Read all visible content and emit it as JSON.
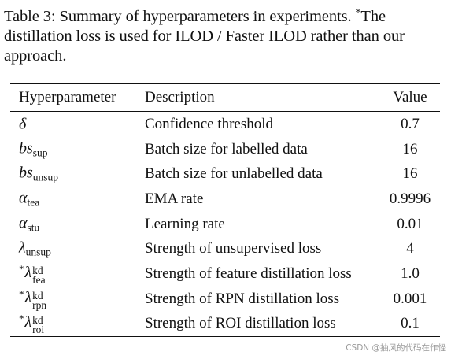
{
  "caption": {
    "lead": "Table 3: Summary of hyperparameters in experiments. ",
    "star": "*",
    "rest": "The distillation loss is used for ILOD / Faster ILOD rather than our approach."
  },
  "table": {
    "headers": {
      "hyperparameter": "Hyperparameter",
      "description": "Description",
      "value": "Value"
    },
    "rows": [
      {
        "star": "",
        "symbol": "δ",
        "sub": "",
        "sup": "",
        "description": "Confidence threshold",
        "value": "0.7"
      },
      {
        "star": "",
        "symbol": "bs",
        "sub": "sup",
        "sup": "",
        "description": "Batch size for labelled data",
        "value": "16"
      },
      {
        "star": "",
        "symbol": "bs",
        "sub": "unsup",
        "sup": "",
        "description": "Batch size for unlabelled data",
        "value": "16"
      },
      {
        "star": "",
        "symbol": "α",
        "sub": "tea",
        "sup": "",
        "description": "EMA rate",
        "value": "0.9996"
      },
      {
        "star": "",
        "symbol": "α",
        "sub": "stu",
        "sup": "",
        "description": "Learning rate",
        "value": "0.01"
      },
      {
        "star": "",
        "symbol": "λ",
        "sub": "unsup",
        "sup": "",
        "description": "Strength of unsupervised loss",
        "value": "4"
      },
      {
        "star": "*",
        "symbol": "λ",
        "sub": "fea",
        "sup": "kd",
        "description": "Strength of feature distillation loss",
        "value": "1.0"
      },
      {
        "star": "*",
        "symbol": "λ",
        "sub": "rpn",
        "sup": "kd",
        "description": "Strength of RPN distillation loss",
        "value": "0.001"
      },
      {
        "star": "*",
        "symbol": "λ",
        "sub": "roi",
        "sup": "kd",
        "description": "Strength of ROI distillation loss",
        "value": "0.1"
      }
    ]
  },
  "watermark": "CSDN @抽风的代码在作怪"
}
